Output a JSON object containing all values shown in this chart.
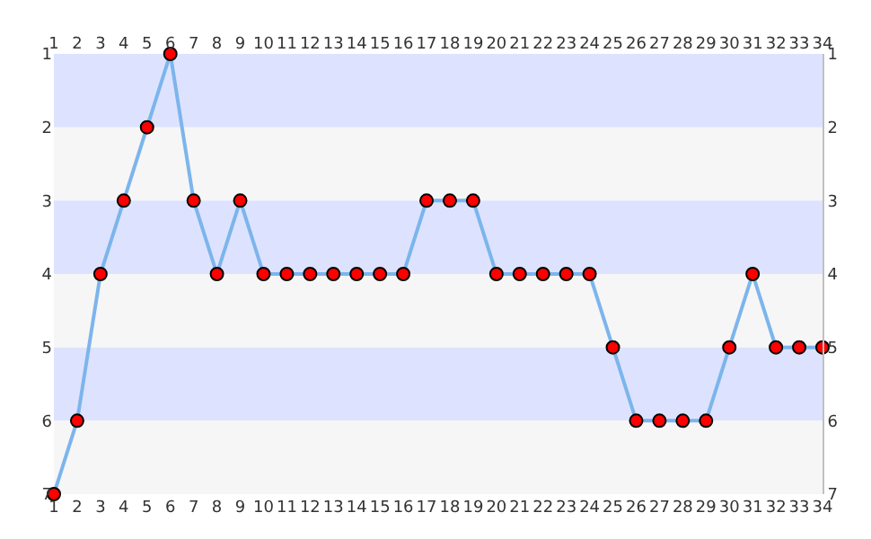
{
  "chart_data": {
    "type": "line",
    "x": [
      1,
      2,
      3,
      4,
      5,
      6,
      7,
      8,
      9,
      10,
      11,
      12,
      13,
      14,
      15,
      16,
      17,
      18,
      19,
      20,
      21,
      22,
      23,
      24,
      25,
      26,
      27,
      28,
      29,
      30,
      31,
      32,
      33,
      34
    ],
    "series": [
      {
        "color": "#7cb5ec",
        "values": [
          7,
          6,
          4,
          3,
          2,
          1,
          3,
          4,
          3,
          4,
          4,
          4,
          4,
          4,
          4,
          4,
          3,
          3,
          3,
          4,
          4,
          4,
          4,
          4,
          5,
          6,
          6,
          6,
          6,
          5,
          4,
          5,
          5,
          5
        ]
      }
    ],
    "marker": "circle",
    "line_style": "solid",
    "xlim": [
      1,
      34
    ],
    "xticks": [
      1,
      2,
      3,
      4,
      5,
      6,
      7,
      8,
      9,
      10,
      11,
      12,
      13,
      14,
      15,
      16,
      17,
      18,
      19,
      20,
      21,
      22,
      23,
      24,
      25,
      26,
      27,
      28,
      29,
      30,
      31,
      32,
      33,
      34
    ],
    "x2lim": [
      1,
      34
    ],
    "x2ticks": [
      1,
      2,
      3,
      4,
      5,
      6,
      7,
      8,
      9,
      10,
      11,
      12,
      13,
      14,
      15,
      16,
      17,
      18,
      19,
      20,
      21,
      22,
      23,
      24,
      25,
      26,
      27,
      28,
      29,
      30,
      31,
      32,
      33,
      34
    ],
    "ylim": [
      7,
      1
    ],
    "yticks": [
      1,
      2,
      3,
      4,
      5,
      6,
      7
    ],
    "y2lim": [
      7,
      1
    ],
    "y2ticks": [
      1,
      2,
      3,
      4,
      5,
      6,
      7
    ],
    "bands": [
      {
        "axis": "y",
        "from": 1,
        "to": 2,
        "color": "#dde3fe"
      },
      {
        "axis": "y",
        "from": 2,
        "to": 3,
        "color": "#f6f6f6"
      },
      {
        "axis": "y",
        "from": 3,
        "to": 4,
        "color": "#dde3fe"
      },
      {
        "axis": "y",
        "from": 4,
        "to": 5,
        "color": "#f6f6f6"
      },
      {
        "axis": "y",
        "from": 5,
        "to": 6,
        "color": "#dde3fe"
      },
      {
        "axis": "y",
        "from": 6,
        "to": 7,
        "color": "#f6f6f6"
      }
    ]
  }
}
